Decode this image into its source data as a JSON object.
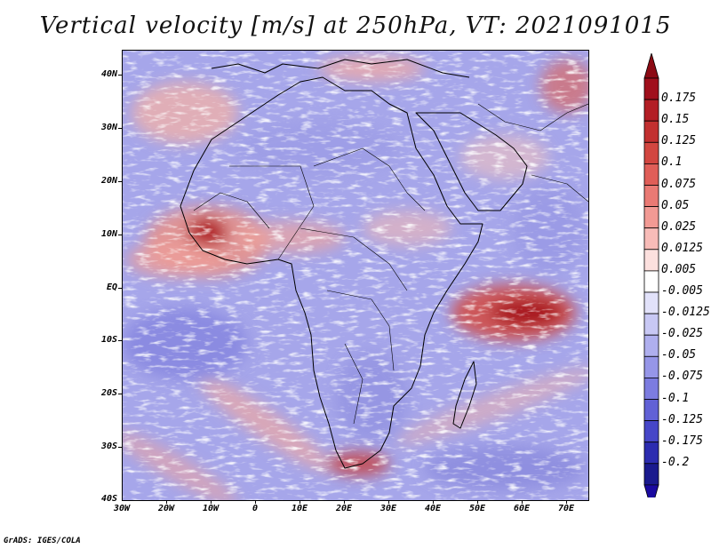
{
  "title": "Vertical velocity [m/s] at 250hPa, VT: 2021091015",
  "credit": "GrADS: IGES/COLA",
  "latitude_labels": [
    "40N",
    "30N",
    "20N",
    "10N",
    "EQ",
    "10S",
    "20S",
    "30S",
    "40S"
  ],
  "longitude_labels": [
    "30W",
    "20W",
    "10W",
    "0",
    "10E",
    "20E",
    "30E",
    "40E",
    "50E",
    "60E",
    "70E"
  ],
  "colorbar": {
    "labels": [
      "0.175",
      "0.15",
      "0.125",
      "0.1",
      "0.075",
      "0.05",
      "0.025",
      "0.0125",
      "0.005",
      "-0.005",
      "-0.0125",
      "-0.025",
      "-0.05",
      "-0.075",
      "-0.1",
      "-0.125",
      "-0.175",
      "-0.2"
    ],
    "colors": [
      "#a00f1c",
      "#b31e25",
      "#c23030",
      "#d24640",
      "#e05e58",
      "#ea7a74",
      "#f29a94",
      "#f8bcb8",
      "#fce0de",
      "#ffffff",
      "#e2e2fa",
      "#c8c8f4",
      "#afafee",
      "#9696e8",
      "#7c7ce0",
      "#6161d6",
      "#4646c8",
      "#2c2cb0",
      "#1a1a8e"
    ],
    "top_arrow_color": "#8c0a14",
    "bottom_arrow_color": "#1a0aa0"
  }
}
